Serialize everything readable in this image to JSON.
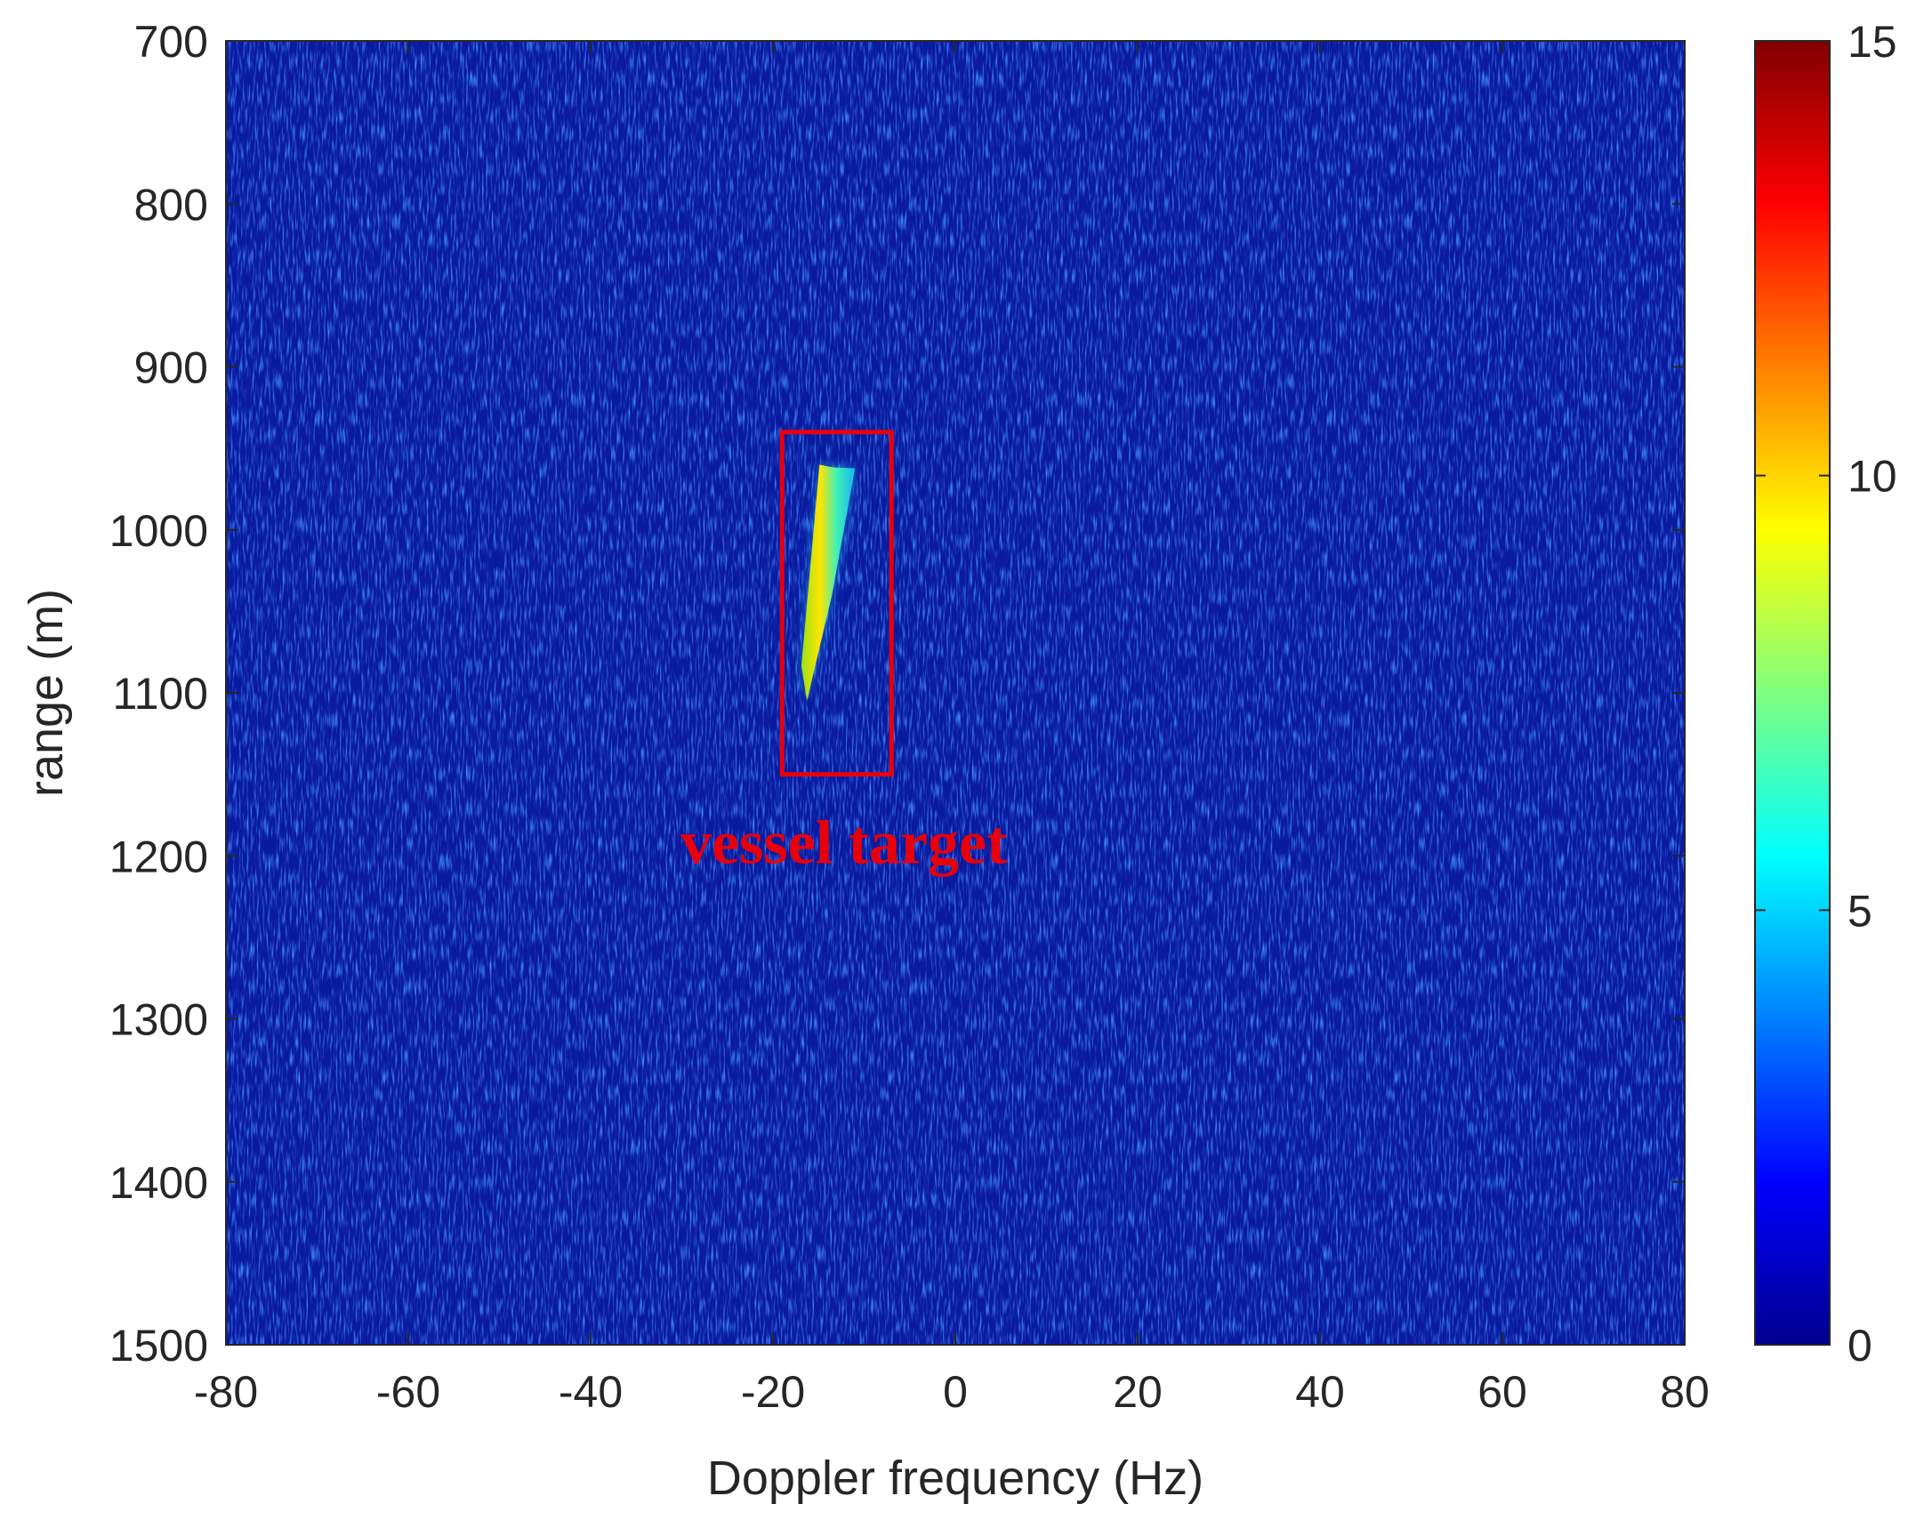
{
  "chart_data": {
    "type": "heatmap",
    "title": "",
    "xlabel": "Doppler frequency (Hz)",
    "ylabel": "range (m)",
    "xlim": [
      -80,
      80
    ],
    "ylim": [
      1500,
      700
    ],
    "y_axis_reversed": true,
    "xticks": [
      "-80",
      "-60",
      "-40",
      "-20",
      "0",
      "20",
      "40",
      "60",
      "80"
    ],
    "yticks": [
      "700",
      "800",
      "900",
      "1000",
      "1100",
      "1200",
      "1300",
      "1400",
      "1500"
    ],
    "colorbar": {
      "range": [
        0,
        15
      ],
      "ticks": [
        "0",
        "5",
        "10",
        "15"
      ],
      "colormap": "jet"
    },
    "background_level": 1,
    "target": {
      "doppler_hz": [
        -17,
        -11
      ],
      "range_m": [
        960,
        1105
      ],
      "peak_value": 9,
      "shape": "slanted streak"
    },
    "annotation": {
      "text": "vessel target",
      "color": "#e8000b",
      "box_x": [
        -19,
        -7
      ],
      "box_y": [
        940,
        1150
      ]
    }
  }
}
